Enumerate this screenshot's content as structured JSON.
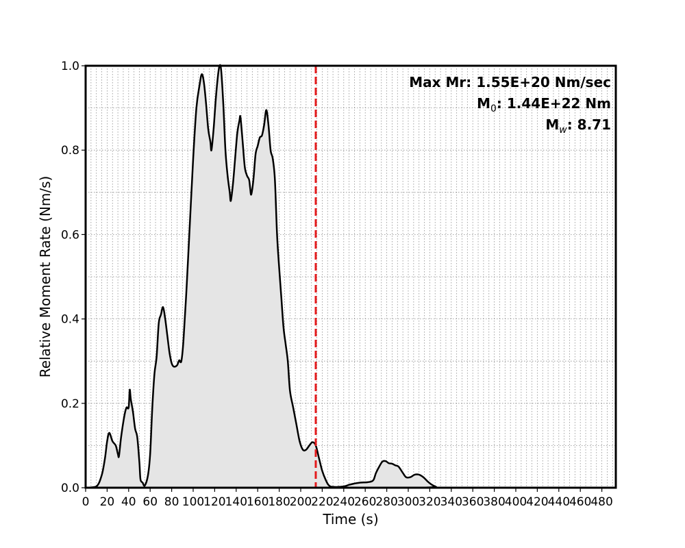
{
  "chart_data": {
    "type": "area",
    "xlabel": "Time (s)",
    "ylabel": "Relative Moment Rate (Nm/s)",
    "xlim": [
      0,
      493
    ],
    "ylim": [
      0,
      1.0
    ],
    "x_ticks": [
      0,
      20,
      40,
      60,
      80,
      100,
      120,
      140,
      160,
      180,
      200,
      220,
      240,
      260,
      280,
      300,
      320,
      340,
      360,
      380,
      400,
      420,
      440,
      460,
      480
    ],
    "y_ticks": [
      0.0,
      0.2,
      0.4,
      0.6,
      0.8,
      1.0
    ],
    "y_tick_labels": [
      "0.0",
      "0.2",
      "0.4",
      "0.6",
      "0.8",
      "1.0"
    ],
    "grid": "dotted, major and minor",
    "annotations": {
      "max_mr": "Max Mr: 1.55E+20 Nm/sec",
      "m0_prefix": "M",
      "m0_sub": "0",
      "m0_value": ": 1.44E+22 Nm",
      "mw_prefix": "M",
      "mw_sub": "w",
      "mw_value": ": 8.71"
    },
    "reference_line": {
      "x": 214,
      "color": "#e41a1c",
      "style": "dashed"
    },
    "series": [
      {
        "line_color": "#000000",
        "fill_color": "#e5e5e5",
        "points": [
          [
            0,
            0.0
          ],
          [
            10,
            0.003
          ],
          [
            15,
            0.03
          ],
          [
            18,
            0.07
          ],
          [
            20,
            0.11
          ],
          [
            22,
            0.13
          ],
          [
            25,
            0.11
          ],
          [
            28,
            0.1
          ],
          [
            30,
            0.08
          ],
          [
            31,
            0.075
          ],
          [
            33,
            0.12
          ],
          [
            36,
            0.17
          ],
          [
            38,
            0.19
          ],
          [
            40,
            0.19
          ],
          [
            41,
            0.232
          ],
          [
            42,
            0.21
          ],
          [
            44,
            0.18
          ],
          [
            46,
            0.14
          ],
          [
            48,
            0.12
          ],
          [
            50,
            0.06
          ],
          [
            51,
            0.02
          ],
          [
            53,
            0.012
          ],
          [
            55,
            0.005
          ],
          [
            58,
            0.03
          ],
          [
            60,
            0.08
          ],
          [
            62,
            0.19
          ],
          [
            64,
            0.27
          ],
          [
            66,
            0.31
          ],
          [
            68,
            0.39
          ],
          [
            70,
            0.41
          ],
          [
            72,
            0.428
          ],
          [
            74,
            0.4
          ],
          [
            76,
            0.36
          ],
          [
            78,
            0.32
          ],
          [
            80,
            0.295
          ],
          [
            82,
            0.287
          ],
          [
            85,
            0.29
          ],
          [
            87,
            0.302
          ],
          [
            89,
            0.3
          ],
          [
            91,
            0.35
          ],
          [
            94,
            0.48
          ],
          [
            97,
            0.63
          ],
          [
            100,
            0.78
          ],
          [
            103,
            0.9
          ],
          [
            106,
            0.955
          ],
          [
            108,
            0.98
          ],
          [
            110,
            0.96
          ],
          [
            112,
            0.91
          ],
          [
            114,
            0.85
          ],
          [
            116,
            0.82
          ],
          [
            117,
            0.8
          ],
          [
            119,
            0.85
          ],
          [
            121,
            0.92
          ],
          [
            123,
            0.975
          ],
          [
            124.5,
            1.0
          ],
          [
            126,
            0.99
          ],
          [
            128,
            0.91
          ],
          [
            130,
            0.8
          ],
          [
            132,
            0.74
          ],
          [
            134,
            0.7
          ],
          [
            135,
            0.68
          ],
          [
            137,
            0.72
          ],
          [
            139,
            0.78
          ],
          [
            141,
            0.84
          ],
          [
            143,
            0.87
          ],
          [
            144,
            0.878
          ],
          [
            146,
            0.82
          ],
          [
            148,
            0.76
          ],
          [
            150,
            0.74
          ],
          [
            152,
            0.73
          ],
          [
            153,
            0.71
          ],
          [
            154,
            0.695
          ],
          [
            156,
            0.73
          ],
          [
            158,
            0.79
          ],
          [
            160,
            0.81
          ],
          [
            162,
            0.83
          ],
          [
            164,
            0.835
          ],
          [
            166,
            0.86
          ],
          [
            168,
            0.895
          ],
          [
            170,
            0.86
          ],
          [
            172,
            0.8
          ],
          [
            174,
            0.78
          ],
          [
            176,
            0.73
          ],
          [
            178,
            0.6
          ],
          [
            180,
            0.52
          ],
          [
            182,
            0.45
          ],
          [
            184,
            0.38
          ],
          [
            186,
            0.34
          ],
          [
            188,
            0.3
          ],
          [
            190,
            0.23
          ],
          [
            193,
            0.19
          ],
          [
            196,
            0.15
          ],
          [
            199,
            0.11
          ],
          [
            202,
            0.09
          ],
          [
            205,
            0.09
          ],
          [
            208,
            0.1
          ],
          [
            211,
            0.108
          ],
          [
            214,
            0.1
          ],
          [
            217,
            0.07
          ],
          [
            220,
            0.04
          ],
          [
            223,
            0.02
          ],
          [
            226,
            0.006
          ],
          [
            230,
            0.002
          ],
          [
            240,
            0.003
          ],
          [
            245,
            0.007
          ],
          [
            250,
            0.01
          ],
          [
            255,
            0.012
          ],
          [
            262,
            0.013
          ],
          [
            266,
            0.015
          ],
          [
            268,
            0.02
          ],
          [
            270,
            0.035
          ],
          [
            273,
            0.05
          ],
          [
            276,
            0.062
          ],
          [
            279,
            0.063
          ],
          [
            282,
            0.058
          ],
          [
            285,
            0.057
          ],
          [
            288,
            0.053
          ],
          [
            291,
            0.05
          ],
          [
            295,
            0.035
          ],
          [
            298,
            0.025
          ],
          [
            302,
            0.025
          ],
          [
            306,
            0.031
          ],
          [
            310,
            0.031
          ],
          [
            314,
            0.025
          ],
          [
            318,
            0.015
          ],
          [
            322,
            0.007
          ],
          [
            326,
            0.002
          ],
          [
            330,
            0.0
          ],
          [
            493,
            0.0
          ]
        ]
      }
    ]
  }
}
